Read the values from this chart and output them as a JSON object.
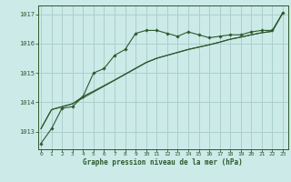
{
  "title": "Graphe pression niveau de la mer (hPa)",
  "bg_color": "#cceae8",
  "grid_color": "#aacfcd",
  "line_color": "#2d5a2d",
  "x_ticks": [
    0,
    1,
    2,
    3,
    4,
    5,
    6,
    7,
    8,
    9,
    10,
    11,
    12,
    13,
    14,
    15,
    16,
    17,
    18,
    19,
    20,
    21,
    22,
    23
  ],
  "y_ticks": [
    1013,
    1014,
    1015,
    1016,
    1017
  ],
  "ylim": [
    1012.4,
    1017.3
  ],
  "xlim": [
    -0.3,
    23.5
  ],
  "series1_x": [
    0,
    1,
    2,
    3,
    4,
    5,
    6,
    7,
    8,
    9,
    10,
    11,
    12,
    13,
    14,
    15,
    16,
    17,
    18,
    19,
    20,
    21,
    22,
    23
  ],
  "series1": [
    1012.6,
    1013.1,
    1013.8,
    1013.85,
    1014.2,
    1015.0,
    1015.15,
    1015.6,
    1015.8,
    1016.35,
    1016.45,
    1016.45,
    1016.35,
    1016.25,
    1016.4,
    1016.3,
    1016.2,
    1016.25,
    1016.3,
    1016.3,
    1016.4,
    1016.45,
    1016.45,
    1017.05
  ],
  "series2": [
    1013.1,
    1013.75,
    1013.85,
    1013.95,
    1014.15,
    1014.35,
    1014.55,
    1014.75,
    1014.95,
    1015.15,
    1015.35,
    1015.5,
    1015.6,
    1015.7,
    1015.8,
    1015.88,
    1015.96,
    1016.05,
    1016.15,
    1016.22,
    1016.3,
    1016.37,
    1016.42,
    1017.05
  ],
  "series3": [
    1013.1,
    1013.75,
    1013.85,
    1013.95,
    1014.2,
    1014.38,
    1014.57,
    1014.76,
    1014.96,
    1015.16,
    1015.36,
    1015.5,
    1015.6,
    1015.7,
    1015.8,
    1015.88,
    1015.96,
    1016.05,
    1016.15,
    1016.22,
    1016.3,
    1016.37,
    1016.42,
    1017.05
  ]
}
